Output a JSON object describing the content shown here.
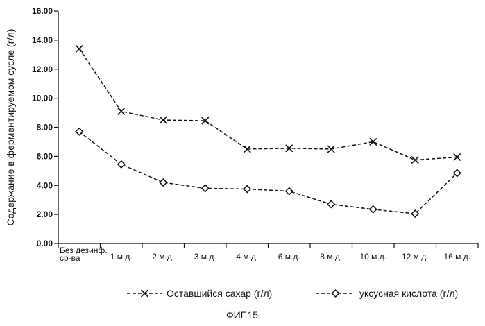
{
  "caption": "ФИГ.15",
  "chart_data": {
    "type": "line",
    "ylabel": "Содержание в ферментируемом сусле (г/л)",
    "xlabel": "",
    "ylim": [
      0,
      16
    ],
    "yticks": [
      "0.00",
      "2.00",
      "4.00",
      "6.00",
      "8.00",
      "10.00",
      "12.00",
      "14.00",
      "16.00"
    ],
    "yticks_values": [
      0,
      2,
      4,
      6,
      8,
      10,
      12,
      14,
      16
    ],
    "categories": [
      "Без дезинф. ср-ва",
      "1 м.д.",
      "2 м.д.",
      "3 м.д.",
      "4 м.д.",
      "6 м.д.",
      "8 м.д.",
      "10 м.д.",
      "12 м.д.",
      "16 м.д."
    ],
    "first_category_lines": [
      "Без дезинф.",
      "ср-ва"
    ],
    "grid": false,
    "legend_position": "bottom",
    "series": [
      {
        "name": "Оставшийся сахар (г/л)",
        "marker": "x",
        "line_style": "dashed",
        "color": "#111111",
        "values": [
          13.4,
          9.1,
          8.5,
          8.45,
          6.5,
          6.55,
          6.5,
          7.0,
          5.75,
          5.95
        ]
      },
      {
        "name": "уксусная кислота (г/л)",
        "marker": "diamond",
        "line_style": "dashed",
        "color": "#111111",
        "values": [
          7.7,
          5.45,
          4.2,
          3.8,
          3.75,
          3.6,
          2.7,
          2.35,
          2.05,
          4.85
        ]
      }
    ]
  }
}
